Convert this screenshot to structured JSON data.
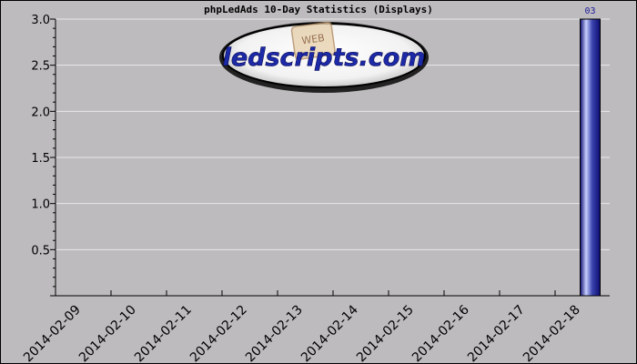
{
  "chart_data": {
    "type": "bar",
    "title": "phpLedAds 10-Day Statistics (Displays)",
    "categories": [
      "2014-02-09",
      "2014-02-10",
      "2014-02-11",
      "2014-02-12",
      "2014-02-13",
      "2014-02-14",
      "2014-02-15",
      "2014-02-16",
      "2014-02-17",
      "2014-02-18"
    ],
    "values": [
      0,
      0,
      0,
      0,
      0,
      0,
      0,
      0,
      0,
      3
    ],
    "data_labels": [
      "",
      "",
      "",
      "",
      "",
      "",
      "",
      "",
      "",
      "03"
    ],
    "ylim": [
      0,
      3.0
    ],
    "yticks": [
      "0.5",
      "1.0",
      "1.5",
      "2.0",
      "2.5",
      "3.0"
    ],
    "ytick_values": [
      0.5,
      1.0,
      1.5,
      2.0,
      2.5,
      3.0
    ],
    "grid": true,
    "bar_color": "#1a1a8a",
    "bar_highlight": "#c8d0ff",
    "plot_background": "#bebbbe",
    "grid_color": "#e8e8e8"
  },
  "logo": {
    "text": "ledscripts.com",
    "badge_text": "WEB",
    "icon": "ledscripts-logo"
  }
}
